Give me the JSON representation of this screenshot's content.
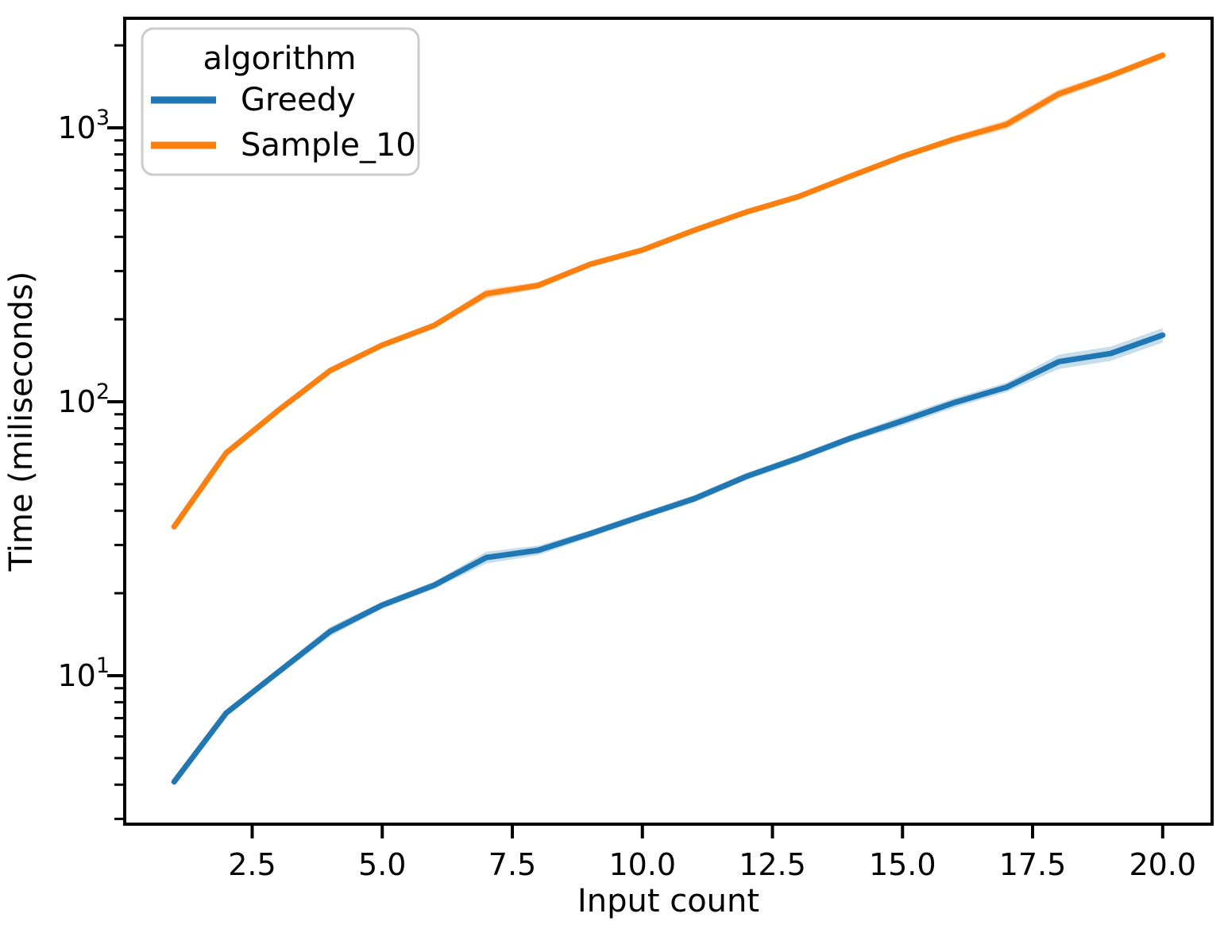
{
  "chart_data": {
    "type": "line",
    "title": "",
    "xlabel": "Input count",
    "ylabel": "Time (miliseconds)",
    "legend_title": "algorithm",
    "x": [
      1,
      2,
      3,
      4,
      5,
      6,
      7,
      8,
      9,
      10,
      11,
      12,
      13,
      14,
      15,
      16,
      17,
      18,
      19,
      20
    ],
    "series": [
      {
        "name": "Greedy",
        "color": "#1f77b4",
        "values": [
          4.1,
          7.3,
          10.3,
          14.5,
          18.1,
          21.4,
          27,
          28.7,
          33,
          38.3,
          44.3,
          53.4,
          62.3,
          73.6,
          85.2,
          99.3,
          113,
          140,
          150,
          175
        ],
        "band_pct": [
          4,
          3,
          3,
          4,
          3,
          3,
          5,
          4,
          3,
          3,
          3,
          3,
          3,
          3,
          4,
          4,
          4,
          6,
          6,
          6
        ]
      },
      {
        "name": "Sample_10",
        "color": "#ff7f0e",
        "values": [
          35,
          65,
          93,
          130,
          161,
          190,
          248,
          266,
          318,
          358,
          423,
          493,
          561,
          666,
          787,
          910,
          1030,
          1330,
          1550,
          1840
        ],
        "band_pct": [
          3,
          2,
          2,
          2,
          2,
          2,
          4,
          3,
          2,
          2,
          2,
          2,
          2,
          2,
          2,
          3,
          4,
          4,
          3,
          3
        ]
      }
    ],
    "x_ticks": [
      2.5,
      5.0,
      7.5,
      10.0,
      12.5,
      15.0,
      17.5,
      20.0
    ],
    "x_tick_labels": [
      "2.5",
      "5.0",
      "7.5",
      "10.0",
      "12.5",
      "15.0",
      "17.5",
      "20.0"
    ],
    "y_scale": "log",
    "y_ticks": [
      10,
      100,
      1000
    ],
    "y_tick_labels": [
      {
        "base": "10",
        "exp": "1"
      },
      {
        "base": "10",
        "exp": "2"
      },
      {
        "base": "10",
        "exp": "3"
      }
    ],
    "xlim": [
      0.05,
      20.95
    ],
    "ylim": [
      2.87,
      2512
    ],
    "grid": false,
    "legend_position": "upper-left",
    "band_opacity": 0.25,
    "text_color": "#000000",
    "spine_color": "#000000"
  }
}
